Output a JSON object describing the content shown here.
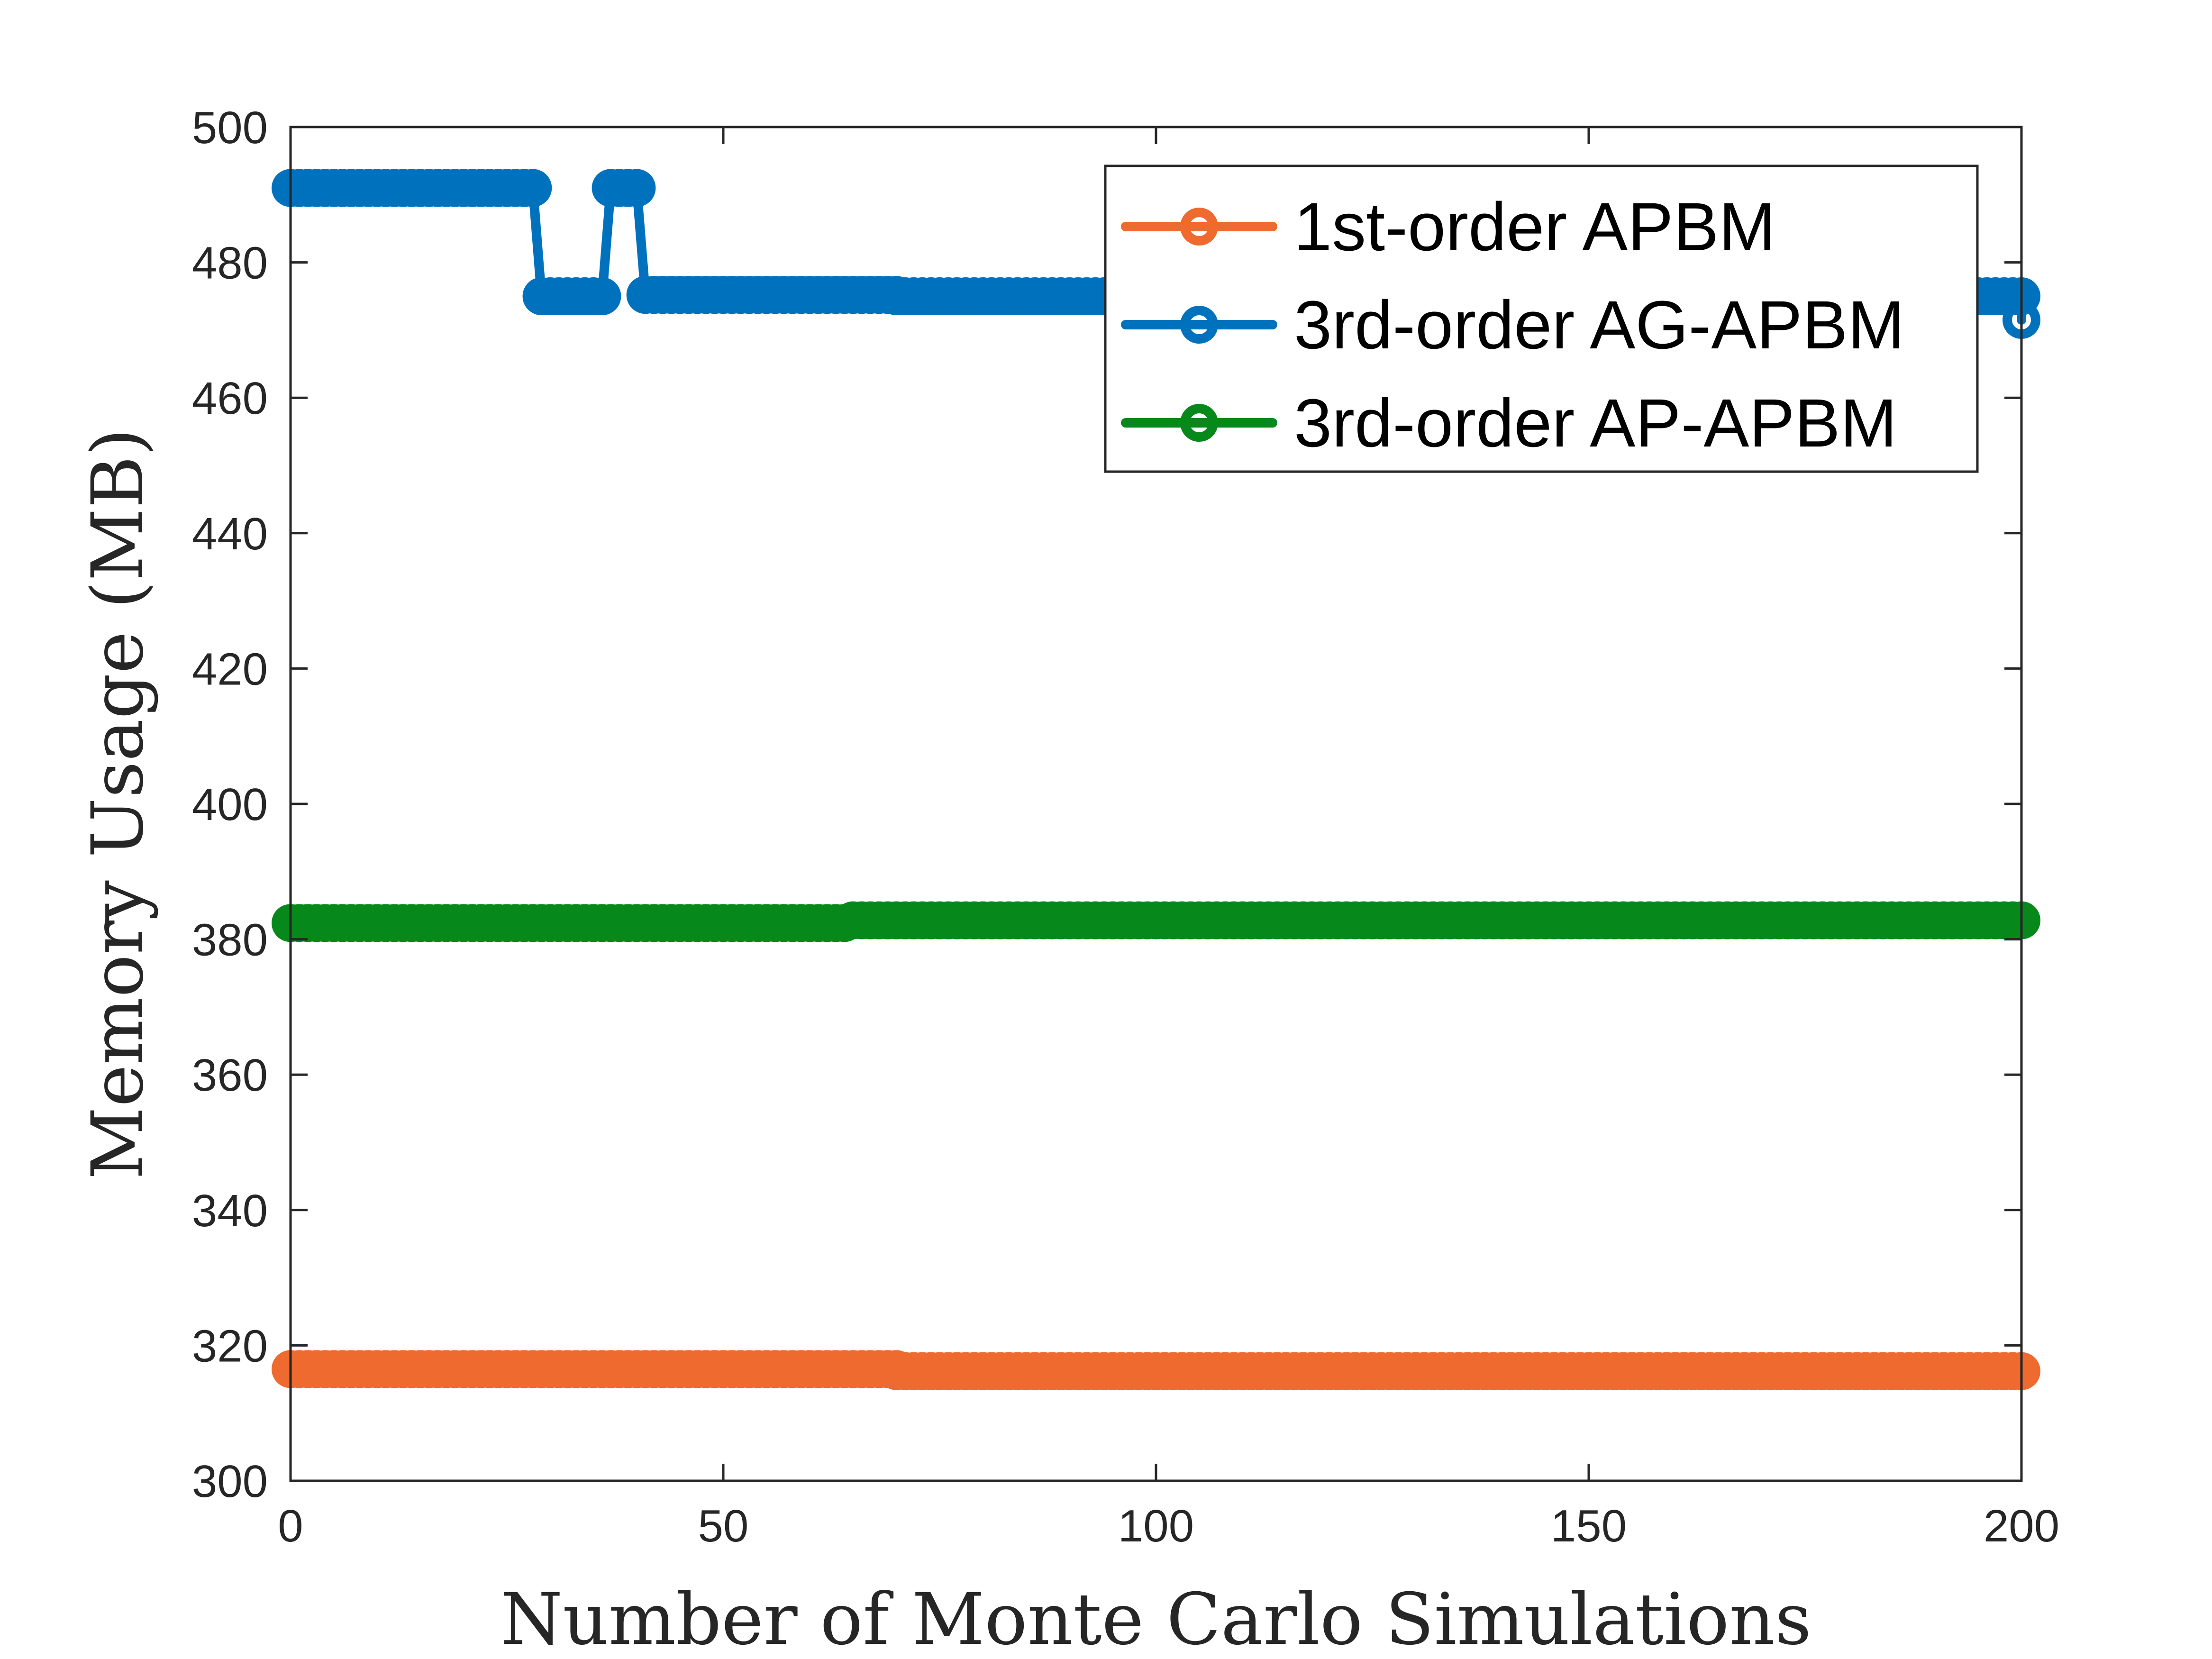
{
  "chart_data": {
    "type": "line",
    "title": "",
    "xlabel": "Number of Monte Carlo Simulations",
    "ylabel": "Memory Usage (MB)",
    "xlim": [
      0,
      200
    ],
    "ylim": [
      300,
      500
    ],
    "xticks": [
      0,
      50,
      100,
      150,
      200
    ],
    "yticks": [
      300,
      320,
      340,
      360,
      380,
      400,
      420,
      440,
      460,
      480,
      500
    ],
    "grid": false,
    "legend_position": "top-right",
    "series": [
      {
        "name": "1st-order APBM",
        "color": "#EE6A2E",
        "marker": "circle",
        "segments": [
          {
            "x_start": 0,
            "x_end": 70,
            "value": 316.5
          },
          {
            "x_start": 70,
            "x_end": 200,
            "value": 316.2
          }
        ]
      },
      {
        "name": "3rd-order AG-APBM",
        "color": "#0072BD",
        "marker": "circle",
        "segments": [
          {
            "x_start": 0,
            "x_end": 28,
            "value": 491
          },
          {
            "x_start": 29,
            "x_end": 36,
            "value": 475
          },
          {
            "x_start": 37,
            "x_end": 40,
            "value": 491
          },
          {
            "x_start": 41,
            "x_end": 70,
            "value": 475.2
          },
          {
            "x_start": 70,
            "x_end": 200,
            "value": 475
          }
        ],
        "final": {
          "x": 200,
          "value": 471.5
        }
      },
      {
        "name": "3rd-order AP-APBM",
        "color": "#07881B",
        "marker": "circle",
        "segments": [
          {
            "x_start": 0,
            "x_end": 64,
            "value": 382.4
          },
          {
            "x_start": 65,
            "x_end": 200,
            "value": 382.8
          }
        ]
      }
    ]
  }
}
